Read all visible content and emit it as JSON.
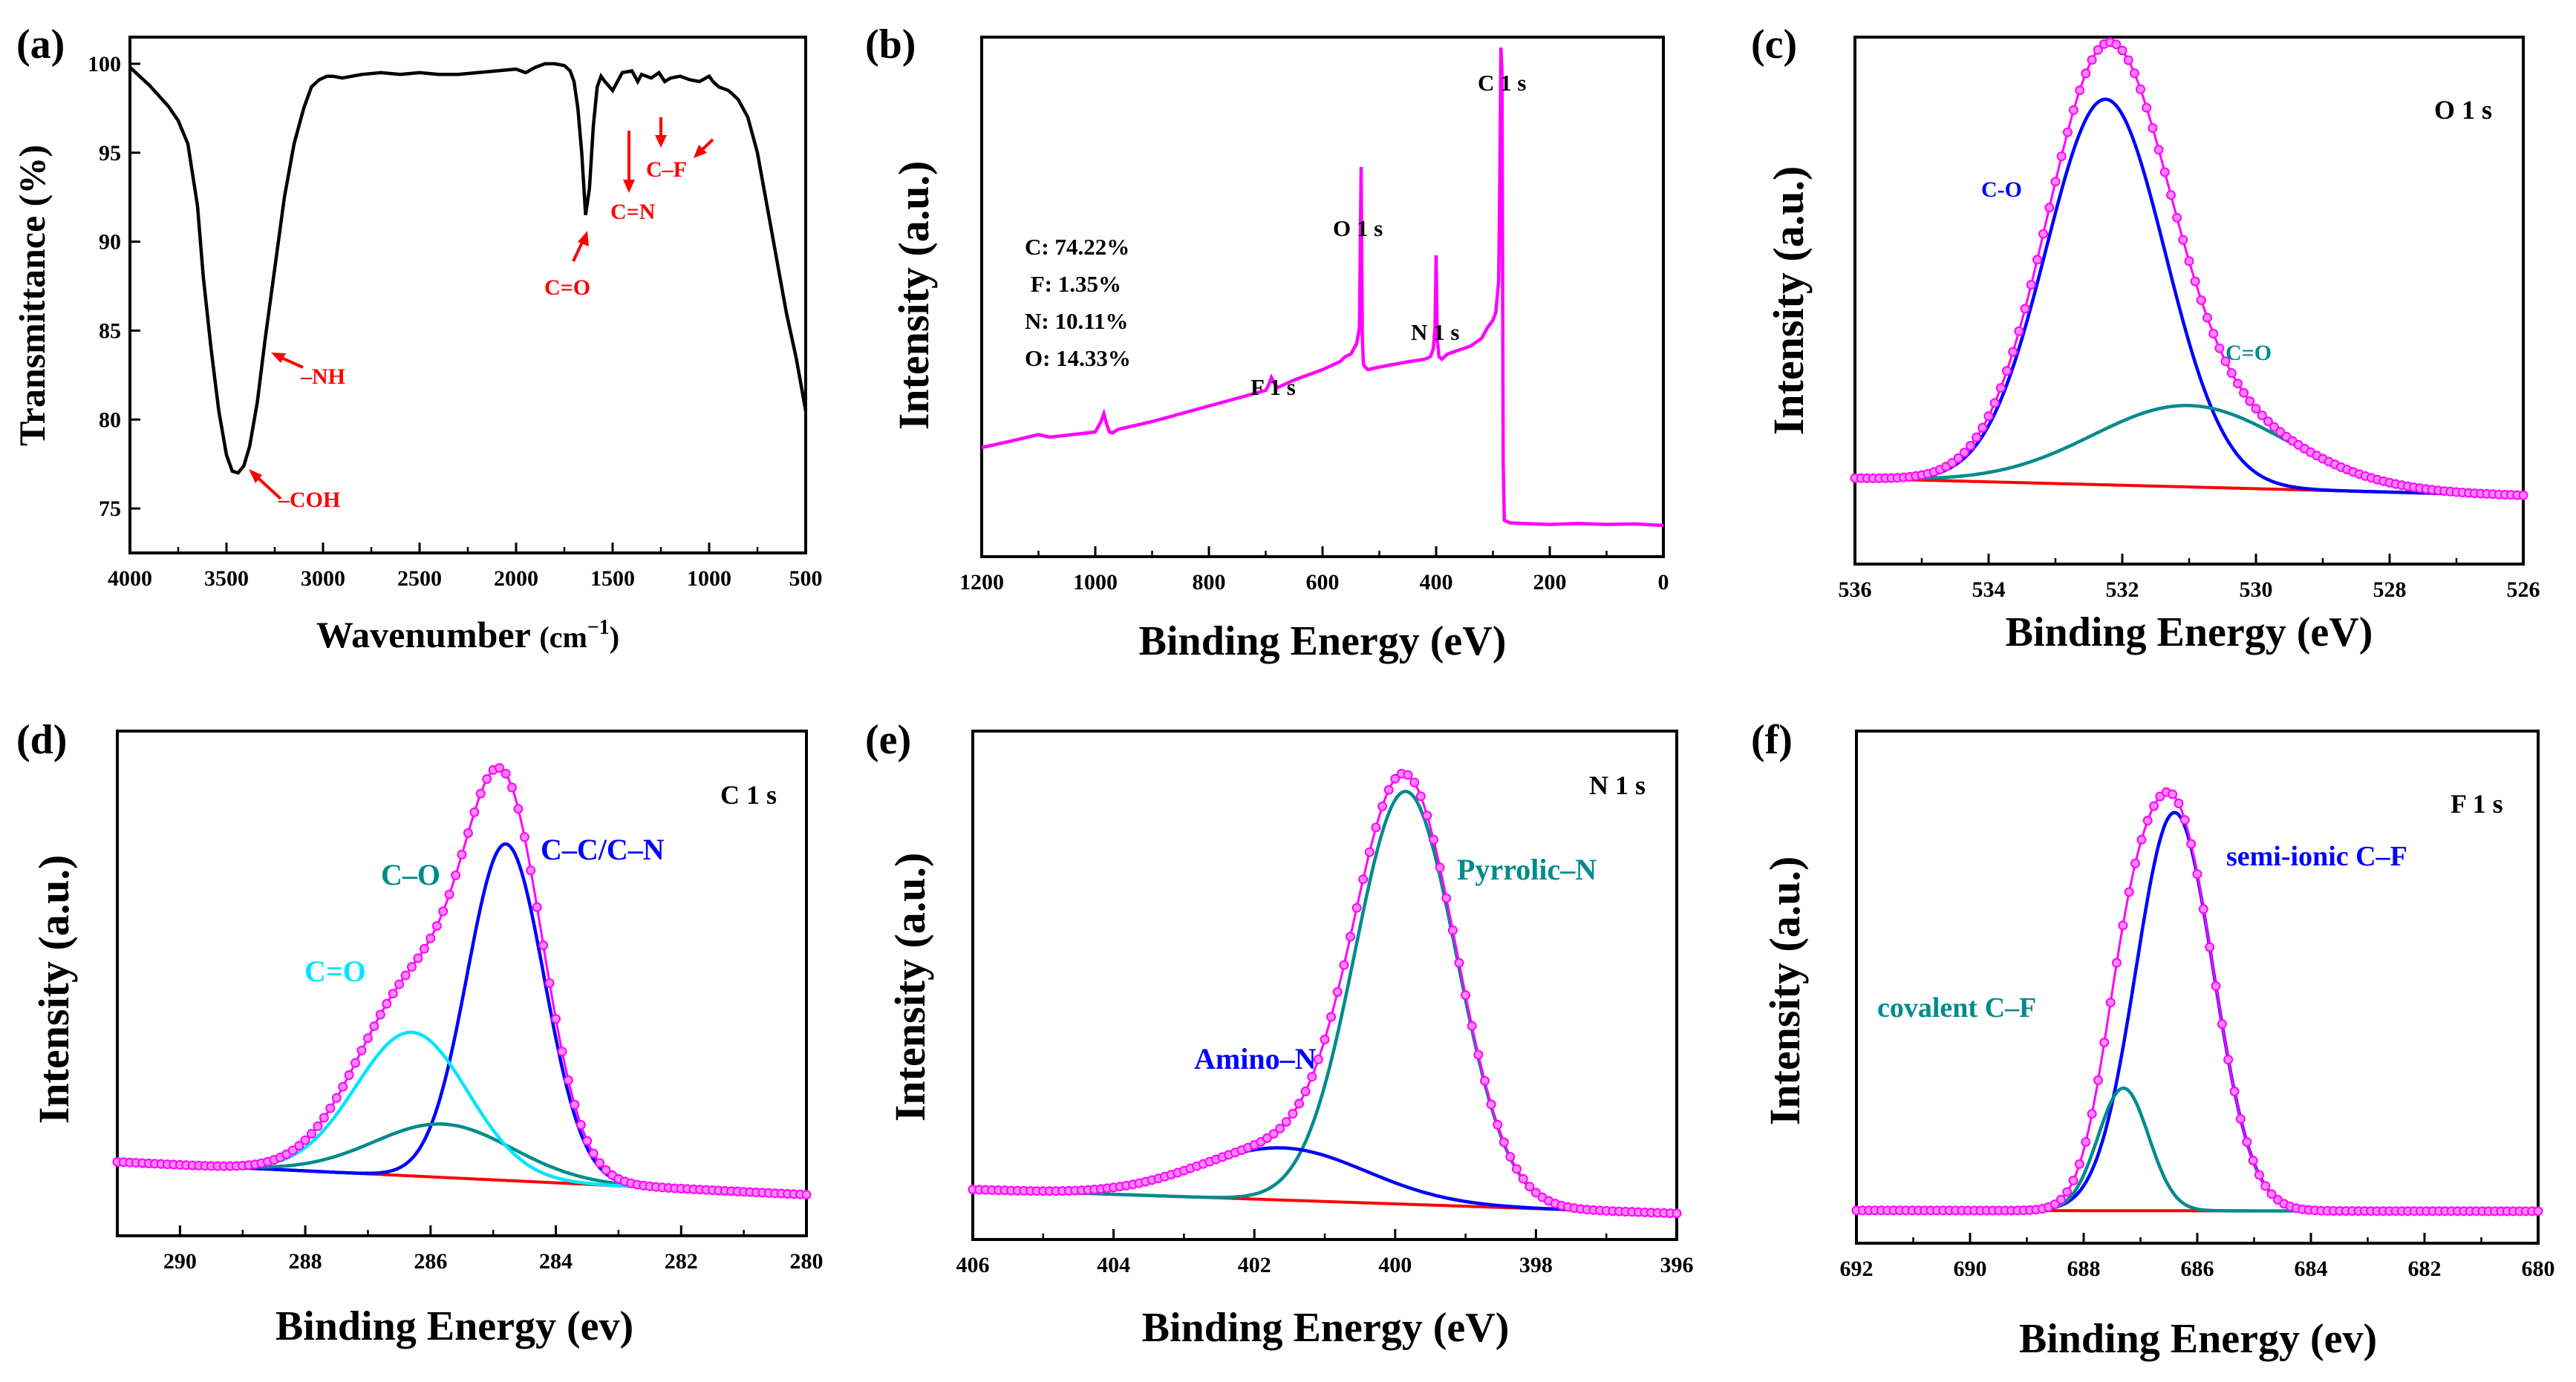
{
  "chart_data": [
    {
      "id": "a",
      "panel_label": "(a)",
      "type": "line",
      "xlabel": "Wavenumber (cm⁻¹)",
      "xlabel_main": "Wavenumber ",
      "xlabel_unit": "(cm",
      "xlabel_sup": "−1",
      "xlabel_close": ")",
      "ylabel": "Transmittance (%)",
      "xlim": [
        4000,
        500
      ],
      "ylim": [
        72.5,
        101.5
      ],
      "xticks": [
        4000,
        3500,
        3000,
        2500,
        2000,
        1500,
        1000,
        500
      ],
      "yticks": [
        75,
        80,
        85,
        90,
        95,
        100
      ],
      "series": [
        {
          "name": "FTIR",
          "color": "#000000",
          "x": [
            4000,
            3900,
            3800,
            3750,
            3700,
            3650,
            3620,
            3580,
            3540,
            3500,
            3470,
            3440,
            3410,
            3380,
            3340,
            3300,
            3250,
            3200,
            3150,
            3100,
            3060,
            3020,
            2980,
            2950,
            2900,
            2850,
            2800,
            2700,
            2600,
            2500,
            2400,
            2300,
            2200,
            2100,
            2000,
            1950,
            1900,
            1850,
            1800,
            1750,
            1720,
            1700,
            1680,
            1660,
            1640,
            1620,
            1600,
            1580,
            1560,
            1540,
            1500,
            1450,
            1400,
            1370,
            1350,
            1300,
            1260,
            1230,
            1200,
            1150,
            1100,
            1050,
            1000,
            980,
            950,
            900,
            850,
            800,
            750,
            700,
            650,
            600,
            550,
            500
          ],
          "y": [
            99.8,
            98.8,
            97.6,
            96.8,
            95.5,
            92,
            88,
            84,
            80.5,
            78,
            77.1,
            77,
            77.4,
            78.5,
            81,
            84.5,
            88.5,
            92.5,
            95.5,
            97.5,
            98.7,
            99.1,
            99.3,
            99.3,
            99.2,
            99.3,
            99.4,
            99.5,
            99.4,
            99.5,
            99.4,
            99.4,
            99.5,
            99.6,
            99.7,
            99.5,
            99.8,
            100,
            100,
            99.9,
            99.6,
            99,
            97.5,
            95,
            91.5,
            93,
            96.5,
            98.7,
            99.3,
            99,
            98.5,
            99.5,
            99.6,
            99,
            99.4,
            99.2,
            99.5,
            99,
            99.2,
            99.3,
            99.1,
            99,
            99.3,
            99,
            98.7,
            98.5,
            98,
            97,
            95,
            92,
            89,
            86,
            83.5,
            80.5
          ]
        }
      ],
      "annotations": [
        {
          "text": "–NH",
          "color": "#ff0000"
        },
        {
          "text": "–COH",
          "color": "#ff0000"
        },
        {
          "text": "C=O",
          "color": "#ff0000"
        },
        {
          "text": "C=N",
          "color": "#ff0000"
        },
        {
          "text": "C–F",
          "color": "#ff0000"
        }
      ]
    },
    {
      "id": "b",
      "panel_label": "(b)",
      "type": "line",
      "xlabel": "Binding Energy (eV)",
      "ylabel": "Intensity (a.u.)",
      "xlim": [
        1200,
        0
      ],
      "ylim": [
        0,
        1
      ],
      "xticks": [
        1200,
        1000,
        800,
        600,
        400,
        200,
        0
      ],
      "series": [
        {
          "name": "XPS survey",
          "color": "#ff00ff",
          "x": [
            1200,
            1150,
            1100,
            1080,
            1000,
            990,
            985,
            980,
            975,
            970,
            960,
            900,
            850,
            800,
            750,
            700,
            695,
            690,
            685,
            680,
            650,
            600,
            580,
            570,
            560,
            550,
            545,
            540,
            535,
            532,
            530,
            528,
            525,
            520,
            500,
            450,
            420,
            410,
            405,
            402,
            400,
            398,
            395,
            390,
            380,
            340,
            320,
            310,
            300,
            295,
            290,
            288,
            286,
            284,
            283,
            282,
            280,
            270,
            250,
            200,
            150,
            100,
            50,
            0
          ],
          "y": [
            0.21,
            0.222,
            0.235,
            0.23,
            0.24,
            0.26,
            0.275,
            0.255,
            0.24,
            0.238,
            0.245,
            0.26,
            0.275,
            0.29,
            0.305,
            0.32,
            0.33,
            0.345,
            0.335,
            0.325,
            0.34,
            0.36,
            0.37,
            0.375,
            0.385,
            0.39,
            0.4,
            0.41,
            0.44,
            0.75,
            0.42,
            0.37,
            0.365,
            0.36,
            0.365,
            0.375,
            0.38,
            0.385,
            0.4,
            0.44,
            0.58,
            0.42,
            0.385,
            0.38,
            0.39,
            0.405,
            0.42,
            0.44,
            0.455,
            0.47,
            0.53,
            0.72,
            0.98,
            0.93,
            0.55,
            0.18,
            0.07,
            0.065,
            0.064,
            0.062,
            0.064,
            0.062,
            0.063,
            0.06
          ]
        }
      ],
      "annotations": [
        {
          "text": "C 1 s"
        },
        {
          "text": "O 1 s"
        },
        {
          "text": "N 1 s"
        },
        {
          "text": "F 1 s"
        }
      ],
      "composition": [
        "C: 74.22%",
        " F: 1.35%",
        "N: 10.11%",
        "O: 14.33%"
      ]
    },
    {
      "id": "c",
      "panel_label": "(c)",
      "type": "line",
      "core_label": "O 1 s",
      "xlabel": "Binding Energy (eV)",
      "ylabel": "Intensity (a.u.)",
      "xlim": [
        536,
        526
      ],
      "ylim": [
        -0.18,
        1.05
      ],
      "xticks": [
        536,
        534,
        532,
        530,
        528,
        526
      ],
      "peaks": [
        {
          "name": "C-O",
          "center": 532.25,
          "fwhm": 2.1,
          "height": 0.9,
          "color": "#0000ff"
        },
        {
          "name": "C=O",
          "center": 531.0,
          "fwhm": 3.4,
          "height": 0.19,
          "color": "#008b8b"
        }
      ],
      "background": {
        "start": [
          536,
          0.02
        ],
        "end": [
          526,
          -0.02
        ],
        "color": "#ff0000"
      },
      "envelope_color": "#ff00ff"
    },
    {
      "id": "d",
      "panel_label": "(d)",
      "type": "line",
      "core_label": "C 1 s",
      "xlabel": "Binding Energy (ev)",
      "ylabel": "Intensity (a.u.)",
      "xlim": [
        291,
        280
      ],
      "ylim": [
        -0.15,
        1.08
      ],
      "xticks": [
        290,
        288,
        286,
        284,
        282,
        280
      ],
      "peaks": [
        {
          "name": "C–C/C–N",
          "center": 284.8,
          "fwhm": 1.45,
          "height": 0.82,
          "color": "#0000ff"
        },
        {
          "name": "C–O",
          "center": 285.8,
          "fwhm": 2.6,
          "height": 0.13,
          "color": "#008b8b"
        },
        {
          "name": "C=O",
          "center": 286.3,
          "fwhm": 2.1,
          "height": 0.35,
          "color": "#00e5ff"
        }
      ],
      "background": {
        "start": [
          291,
          0.03
        ],
        "end": [
          280,
          -0.05
        ],
        "color": "#ff0000"
      },
      "envelope_color": "#ff00ff"
    },
    {
      "id": "e",
      "panel_label": "(e)",
      "type": "line",
      "core_label": "N 1 s",
      "xlabel": "Binding Energy (eV)",
      "ylabel": "Intensity (a.u.)",
      "xlim": [
        406,
        396
      ],
      "ylim": [
        -0.07,
        1.1
      ],
      "xticks": [
        406,
        404,
        402,
        400,
        398,
        396
      ],
      "peaks": [
        {
          "name": "Pyrrolic–N",
          "center": 399.85,
          "fwhm": 1.7,
          "height": 0.95,
          "color": "#008b8b"
        },
        {
          "name": "Amino–N",
          "center": 401.6,
          "fwhm": 2.8,
          "height": 0.12,
          "color": "#0000ff"
        }
      ],
      "background": {
        "start": [
          406,
          0.045
        ],
        "end": [
          396,
          -0.01
        ],
        "color": "#ff0000"
      },
      "envelope_color": "#ff00ff"
    },
    {
      "id": "f",
      "panel_label": "(f)",
      "type": "line",
      "core_label": "F 1 s",
      "xlabel": "Binding Energy (ev)",
      "ylabel": "Intensity (a.u.)",
      "xlim": [
        692,
        680
      ],
      "ylim": [
        -0.07,
        1.1
      ],
      "xticks": [
        692,
        690,
        688,
        686,
        684,
        682,
        680
      ],
      "peaks": [
        {
          "name": "semi-ionic C–F",
          "center": 686.4,
          "fwhm": 1.6,
          "height": 0.91,
          "color": "#0000ff"
        },
        {
          "name": "covalent C–F",
          "center": 687.3,
          "fwhm": 1.05,
          "height": 0.28,
          "color": "#008b8b"
        }
      ],
      "background": {
        "start": [
          692,
          0.005
        ],
        "end": [
          680,
          0.003
        ],
        "color": "#ff0000"
      },
      "envelope_color": "#ff00ff"
    }
  ]
}
